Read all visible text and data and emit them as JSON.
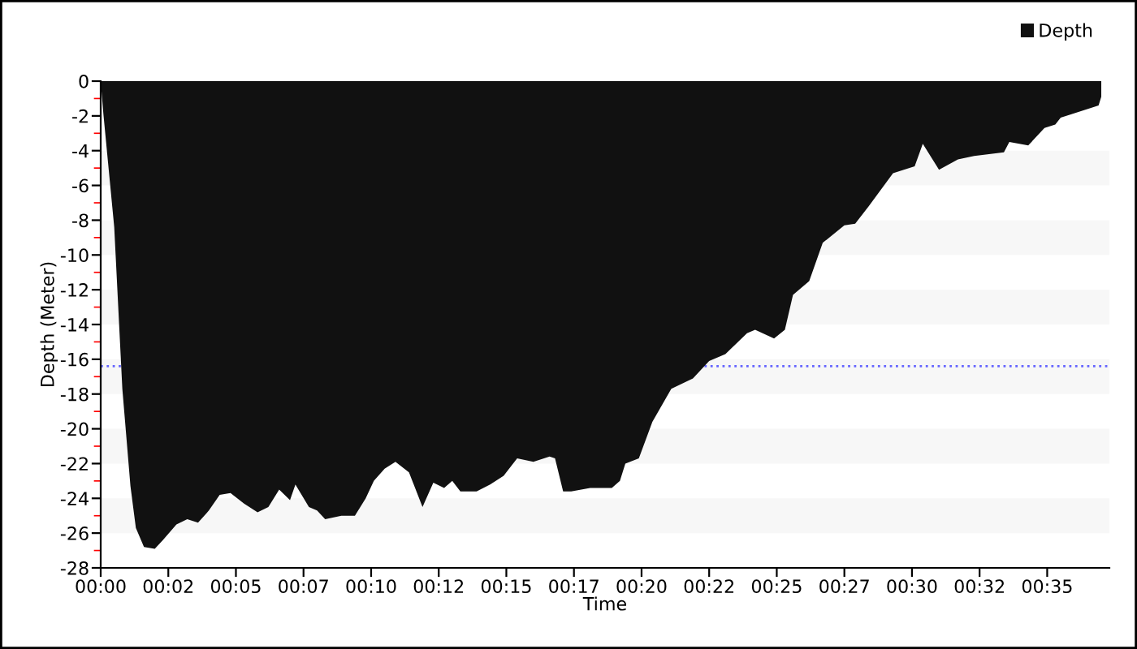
{
  "chart_data": {
    "type": "area",
    "xlabel": "Time",
    "ylabel": "Depth (Meter)",
    "legend": "top right",
    "x": [
      0,
      0.1,
      0.5,
      0.8,
      1.1,
      1.3,
      1.6,
      2.0,
      2.3,
      2.8,
      3.2,
      3.6,
      4.0,
      4.4,
      4.8,
      5.3,
      5.8,
      6.2,
      6.6,
      7.0,
      7.2,
      7.7,
      8.0,
      8.3,
      8.9,
      9.4,
      9.8,
      10.1,
      10.5,
      10.9,
      11.4,
      11.9,
      12.3,
      12.7,
      13.0,
      13.3,
      13.9,
      14.4,
      14.9,
      15.4,
      16.0,
      16.6,
      16.8,
      17.1,
      17.4,
      18.1,
      18.9,
      19.2,
      19.4,
      19.9,
      20.4,
      21.1,
      21.9,
      22.5,
      23.1,
      23.9,
      24.2,
      24.9,
      25.3,
      25.6,
      26.2,
      26.7,
      27.5,
      27.9,
      28.4,
      29.3,
      30.1,
      30.4,
      31.0,
      31.7,
      32.3,
      33.4,
      33.6,
      34.3,
      34.9,
      35.3,
      35.5,
      35.9,
      36.9,
      37.0
    ],
    "series": [
      {
        "name": "Depth",
        "color": "#111111",
        "values": [
          0,
          -1.9,
          -8.4,
          -17.7,
          -23.3,
          -25.7,
          -26.8,
          -26.9,
          -26.4,
          -25.5,
          -25.2,
          -25.4,
          -24.7,
          -23.8,
          -23.7,
          -24.3,
          -24.8,
          -24.5,
          -23.5,
          -24.1,
          -23.2,
          -24.5,
          -24.7,
          -25.2,
          -25.0,
          -25.0,
          -24.0,
          -23.0,
          -22.3,
          -21.9,
          -22.5,
          -24.5,
          -23.1,
          -23.4,
          -23.0,
          -23.6,
          -23.6,
          -23.2,
          -22.7,
          -21.7,
          -21.9,
          -21.6,
          -21.7,
          -23.6,
          -23.6,
          -23.4,
          -23.4,
          -23.0,
          -22.0,
          -21.7,
          -19.6,
          -17.7,
          -17.1,
          -16.1,
          -15.7,
          -14.5,
          -14.3,
          -14.8,
          -14.3,
          -12.3,
          -11.5,
          -9.3,
          -8.3,
          -8.2,
          -7.2,
          -5.3,
          -4.9,
          -3.6,
          -5.1,
          -4.5,
          -4.3,
          -4.1,
          -3.5,
          -3.7,
          -2.7,
          -2.5,
          -2.1,
          -1.9,
          -1.4,
          -0.9
        ]
      }
    ],
    "xlim": [
      0,
      37.3
    ],
    "xticks": [
      {
        "value": 0,
        "label": "00:00"
      },
      {
        "value": 2.5,
        "label": "00:02"
      },
      {
        "value": 5,
        "label": "00:05"
      },
      {
        "value": 7.5,
        "label": "00:07"
      },
      {
        "value": 10,
        "label": "00:10"
      },
      {
        "value": 12.5,
        "label": "00:12"
      },
      {
        "value": 15,
        "label": "00:15"
      },
      {
        "value": 17.5,
        "label": "00:17"
      },
      {
        "value": 20,
        "label": "00:20"
      },
      {
        "value": 22.5,
        "label": "00:22"
      },
      {
        "value": 25,
        "label": "00:25"
      },
      {
        "value": 27.5,
        "label": "00:27"
      },
      {
        "value": 30,
        "label": "00:30"
      },
      {
        "value": 32.5,
        "label": "00:32"
      },
      {
        "value": 35,
        "label": "00:35"
      }
    ],
    "ylim": [
      -28,
      0
    ],
    "yticks": [
      0,
      -2,
      -4,
      -6,
      -8,
      -10,
      -12,
      -14,
      -16,
      -18,
      -20,
      -22,
      -24,
      -26,
      -28
    ],
    "ref_lines": [
      {
        "axis": "y",
        "value": -16.4,
        "color": "#6666ff",
        "line_style": "dotted"
      }
    ],
    "bands": [
      {
        "axis": "y",
        "from": -4,
        "to": -6,
        "color": "#f7f7f7"
      },
      {
        "axis": "y",
        "from": -8,
        "to": -10,
        "color": "#f7f7f7"
      },
      {
        "axis": "y",
        "from": -12,
        "to": -14,
        "color": "#f7f7f7"
      },
      {
        "axis": "y",
        "from": -16,
        "to": -18,
        "color": "#f7f7f7"
      },
      {
        "axis": "y",
        "from": -20,
        "to": -22,
        "color": "#f7f7f7"
      },
      {
        "axis": "y",
        "from": -24,
        "to": -26,
        "color": "#f7f7f7"
      }
    ],
    "grid": false
  }
}
